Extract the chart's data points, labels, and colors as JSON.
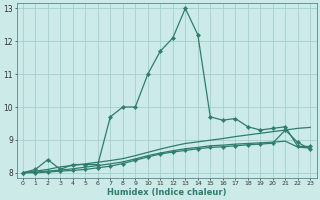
{
  "xlabel": "Humidex (Indice chaleur)",
  "bg_color": "#cceae7",
  "grid_color": "#99ccc8",
  "line_color": "#2e7d6e",
  "xlim_min": -0.5,
  "xlim_max": 23.5,
  "ylim_min": 7.85,
  "ylim_max": 13.15,
  "xticks": [
    0,
    1,
    2,
    3,
    4,
    5,
    6,
    7,
    8,
    9,
    10,
    11,
    12,
    13,
    14,
    15,
    16,
    17,
    18,
    19,
    20,
    21,
    22,
    23
  ],
  "yticks": [
    8,
    9,
    10,
    11,
    12,
    13
  ],
  "s1_x": [
    0,
    1,
    2,
    3,
    4,
    5,
    6,
    7,
    8,
    9,
    10,
    11,
    12,
    13,
    14,
    15,
    16,
    17,
    18,
    19,
    20,
    21,
    22,
    23
  ],
  "s1_y": [
    8.0,
    8.1,
    8.4,
    8.1,
    8.25,
    8.25,
    8.25,
    9.7,
    10.0,
    10.0,
    11.0,
    11.7,
    12.1,
    13.0,
    12.2,
    9.7,
    9.6,
    9.65,
    9.4,
    9.3,
    9.35,
    9.4,
    8.8,
    8.8
  ],
  "s2_x": [
    0,
    1,
    2,
    3,
    4,
    5,
    6,
    7,
    8,
    9,
    10,
    11,
    12,
    13,
    14,
    15,
    16,
    17,
    18,
    19,
    20,
    21,
    22,
    23
  ],
  "s2_y": [
    8.0,
    8.05,
    8.1,
    8.18,
    8.22,
    8.27,
    8.32,
    8.37,
    8.43,
    8.52,
    8.62,
    8.72,
    8.81,
    8.89,
    8.94,
    8.99,
    9.04,
    9.1,
    9.15,
    9.2,
    9.25,
    9.3,
    9.35,
    9.38
  ],
  "s3_x": [
    0,
    1,
    2,
    3,
    4,
    5,
    6,
    7,
    8,
    9,
    10,
    11,
    12,
    13,
    14,
    15,
    16,
    17,
    18,
    19,
    20,
    21,
    22,
    23
  ],
  "s3_y": [
    8.0,
    8.02,
    8.05,
    8.08,
    8.12,
    8.17,
    8.22,
    8.27,
    8.33,
    8.42,
    8.52,
    8.6,
    8.67,
    8.73,
    8.77,
    8.82,
    8.84,
    8.87,
    8.89,
    8.91,
    8.93,
    8.96,
    8.78,
    8.75
  ],
  "s4_x": [
    0,
    1,
    2,
    3,
    4,
    5,
    6,
    7,
    8,
    9,
    10,
    11,
    12,
    13,
    14,
    15,
    16,
    17,
    18,
    19,
    20,
    21,
    22,
    23
  ],
  "s4_y": [
    8.0,
    8.0,
    8.02,
    8.05,
    8.07,
    8.1,
    8.15,
    8.2,
    8.28,
    8.38,
    8.48,
    8.57,
    8.63,
    8.68,
    8.73,
    8.77,
    8.79,
    8.82,
    8.85,
    8.87,
    8.9,
    9.3,
    8.92,
    8.72
  ]
}
